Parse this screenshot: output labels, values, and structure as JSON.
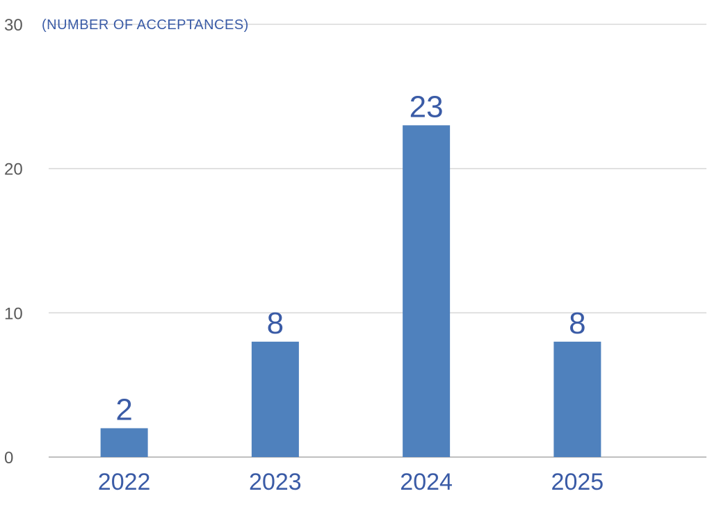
{
  "chart_data": {
    "type": "bar",
    "title": "",
    "xlabel": "",
    "ylabel": "(NUMBER OF ACCEPTANCES)",
    "categories": [
      "2022",
      "2023",
      "2024",
      "2025"
    ],
    "values": [
      2,
      8,
      23,
      8
    ],
    "ylim": [
      0,
      30
    ],
    "yticks": [
      0,
      10,
      20,
      30
    ],
    "grid": true,
    "legend": "none",
    "colors": {
      "bar": "#4f81bd",
      "grid": "#d9d9d9",
      "axis_text": "#595959",
      "label_text": "#3a5ba6"
    }
  }
}
